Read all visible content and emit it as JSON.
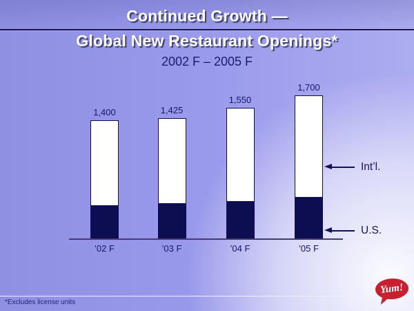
{
  "slide": {
    "title_line1": "Continued Growth —",
    "title_line2": "Global New Restaurant Openings*",
    "subtitle": "2002 F – 2005 F",
    "footnote": "*Excludes license units",
    "logo_text": "Yum!"
  },
  "colors": {
    "background_periwinkle": "#9a9aec",
    "navy": "#0d0d52",
    "text_navy": "#15156a",
    "title_text": "#ffffff",
    "bar_fill_intl": "#ffffff",
    "bar_fill_us": "#0d0d52",
    "axis_line": "#3f3f6e",
    "logo_red": "#c8202f"
  },
  "chart_data": {
    "type": "bar",
    "stacked": true,
    "title": "Continued Growth — Global New Restaurant Openings*",
    "subtitle": "2002 F – 2005 F",
    "categories": [
      "’02 F",
      "’03 F",
      "’04 F",
      "’05 F"
    ],
    "series": [
      {
        "name": "U.S.",
        "values": [
          400,
          425,
          450,
          500
        ],
        "color": "#0d0d52"
      },
      {
        "name": "Int’l.",
        "values": [
          1000,
          1000,
          1100,
          1200
        ],
        "color": "#ffffff"
      }
    ],
    "totals": [
      1400,
      1425,
      1550,
      1700
    ],
    "totals_display": [
      "1,400",
      "1,425",
      "1,550",
      "1,700"
    ],
    "ylim": [
      0,
      1750
    ],
    "grid": false,
    "legend_position": "right-arrows",
    "annotations": [
      {
        "label": "Int’l.",
        "points_to": "international-segment"
      },
      {
        "label": "U.S.",
        "points_to": "us-segment"
      }
    ]
  }
}
